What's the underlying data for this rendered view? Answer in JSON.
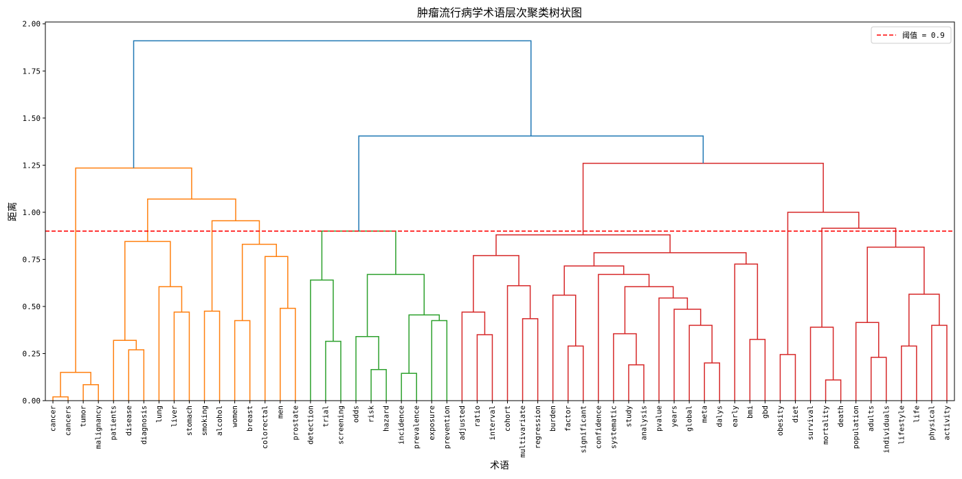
{
  "chart_data": {
    "type": "dendrogram",
    "title": "肿瘤流行病学术语层次聚类树状图",
    "xlabel": "术语",
    "ylabel": "距离",
    "ylim": [
      0,
      2.01
    ],
    "yticks": [
      "0.00",
      "0.25",
      "0.50",
      "0.75",
      "1.00",
      "1.25",
      "1.50",
      "1.75",
      "2.00"
    ],
    "threshold": {
      "value": 0.9,
      "label": "阈值 = 0.9",
      "color": "#ff0000",
      "style": "dashed"
    },
    "legend_position": "top-right",
    "colors": {
      "blue": "#1f77b4",
      "orange": "#ff7f0e",
      "green": "#2ca02c",
      "red": "#d62728"
    },
    "tree": {
      "h": 1.91,
      "color": "#1f77b4",
      "ch": [
        {
          "h": 1.235,
          "color": "#ff7f0e",
          "ch": [
            {
              "h": 0.15,
              "ch": [
                {
                  "h": 0.02,
                  "ch": [
                    "cancer",
                    "cancers"
                  ]
                },
                {
                  "h": 0.085,
                  "ch": [
                    "tumor",
                    "malignancy"
                  ]
                }
              ]
            },
            {
              "h": 1.07,
              "ch": [
                {
                  "h": 0.845,
                  "ch": [
                    {
                      "h": 0.32,
                      "ch": [
                        "patients",
                        {
                          "h": 0.27,
                          "ch": [
                            "disease",
                            "diagnosis"
                          ]
                        }
                      ]
                    },
                    {
                      "h": 0.605,
                      "ch": [
                        "lung",
                        {
                          "h": 0.47,
                          "ch": [
                            "liver",
                            "stomach"
                          ]
                        }
                      ]
                    }
                  ]
                },
                {
                  "h": 0.955,
                  "ch": [
                    {
                      "h": 0.475,
                      "ch": [
                        "smoking",
                        "alcohol"
                      ]
                    },
                    {
                      "h": 0.83,
                      "ch": [
                        {
                          "h": 0.425,
                          "ch": [
                            "women",
                            "breast"
                          ]
                        },
                        {
                          "h": 0.765,
                          "ch": [
                            "colorectal",
                            {
                              "h": 0.49,
                              "ch": [
                                "men",
                                "prostate"
                              ]
                            }
                          ]
                        }
                      ]
                    }
                  ]
                }
              ]
            }
          ]
        },
        {
          "h": 1.405,
          "color": "#1f77b4",
          "ch": [
            {
              "h": 0.9,
              "color": "#2ca02c",
              "ch": [
                {
                  "h": 0.64,
                  "ch": [
                    "detection",
                    {
                      "h": 0.315,
                      "ch": [
                        "trial",
                        "screening"
                      ]
                    }
                  ]
                },
                {
                  "h": 0.67,
                  "ch": [
                    {
                      "h": 0.34,
                      "ch": [
                        "odds",
                        {
                          "h": 0.165,
                          "ch": [
                            "risk",
                            "hazard"
                          ]
                        }
                      ]
                    },
                    {
                      "h": 0.455,
                      "ch": [
                        {
                          "h": 0.145,
                          "ch": [
                            "incidence",
                            "prevalence"
                          ]
                        },
                        {
                          "h": 0.425,
                          "ch": [
                            "exposure",
                            "prevention"
                          ]
                        }
                      ]
                    }
                  ]
                }
              ]
            },
            {
              "h": 1.26,
              "color": "#d62728",
              "ch": [
                {
                  "h": 0.88,
                  "ch": [
                    {
                      "h": 0.77,
                      "ch": [
                        {
                          "h": 0.47,
                          "ch": [
                            "adjusted",
                            {
                              "h": 0.35,
                              "ch": [
                                "ratio",
                                "interval"
                              ]
                            }
                          ]
                        },
                        {
                          "h": 0.61,
                          "ch": [
                            "cohort",
                            {
                              "h": 0.435,
                              "ch": [
                                "multivariate",
                                "regression"
                              ]
                            }
                          ]
                        }
                      ]
                    },
                    {
                      "h": 0.785,
                      "ch": [
                        {
                          "h": 0.715,
                          "ch": [
                            {
                              "h": 0.56,
                              "ch": [
                                "burden",
                                {
                                  "h": 0.29,
                                  "ch": [
                                    "factor",
                                    "significant"
                                  ]
                                }
                              ]
                            },
                            {
                              "h": 0.67,
                              "ch": [
                                "confidence",
                                {
                                  "h": 0.605,
                                  "ch": [
                                    {
                                      "h": 0.355,
                                      "ch": [
                                        "systematic",
                                        {
                                          "h": 0.19,
                                          "ch": [
                                            "study",
                                            "analysis"
                                          ]
                                        }
                                      ]
                                    },
                                    {
                                      "h": 0.545,
                                      "ch": [
                                        "pvalue",
                                        {
                                          "h": 0.485,
                                          "ch": [
                                            "years",
                                            {
                                              "h": 0.4,
                                              "ch": [
                                                "global",
                                                {
                                                  "h": 0.2,
                                                  "ch": [
                                                    "meta",
                                                    "dalys"
                                                  ]
                                                }
                                              ]
                                            }
                                          ]
                                        }
                                      ]
                                    }
                                  ]
                                }
                              ]
                            }
                          ]
                        },
                        {
                          "h": 0.725,
                          "ch": [
                            "early",
                            {
                              "h": 0.325,
                              "ch": [
                                "bmi",
                                "gbd"
                              ]
                            }
                          ]
                        }
                      ]
                    }
                  ]
                },
                {
                  "h": 1.0,
                  "ch": [
                    {
                      "h": 0.245,
                      "ch": [
                        "obesity",
                        "diet"
                      ]
                    },
                    {
                      "h": 0.915,
                      "ch": [
                        {
                          "h": 0.39,
                          "ch": [
                            "survival",
                            {
                              "h": 0.11,
                              "ch": [
                                "mortality",
                                "death"
                              ]
                            }
                          ]
                        },
                        {
                          "h": 0.815,
                          "ch": [
                            {
                              "h": 0.415,
                              "ch": [
                                "population",
                                {
                                  "h": 0.23,
                                  "ch": [
                                    "adults",
                                    "individuals"
                                  ]
                                }
                              ]
                            },
                            {
                              "h": 0.565,
                              "ch": [
                                {
                                  "h": 0.29,
                                  "ch": [
                                    "lifestyle",
                                    "life"
                                  ]
                                },
                                {
                                  "h": 0.4,
                                  "ch": [
                                    "physical",
                                    "activity"
                                  ]
                                }
                              ]
                            }
                          ]
                        }
                      ]
                    }
                  ]
                }
              ]
            }
          ]
        }
      ]
    }
  }
}
